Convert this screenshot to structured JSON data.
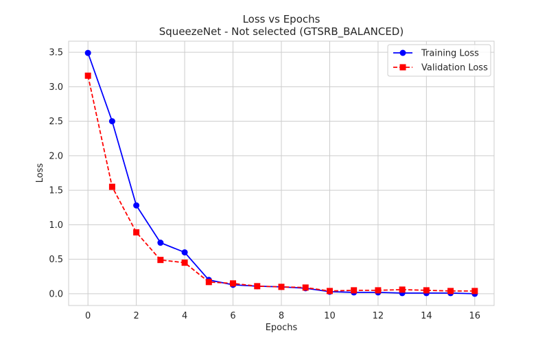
{
  "chart_data": {
    "type": "line",
    "title": "Loss vs Epochs",
    "subtitle": "SqueezeNet - Not selected (GTSRB_BALANCED)",
    "xlabel": "Epochs",
    "ylabel": "Loss",
    "xlim": [
      -0.8,
      16.8
    ],
    "ylim": [
      -0.17,
      3.66
    ],
    "xticks": [
      0,
      2,
      4,
      6,
      8,
      10,
      12,
      14,
      16
    ],
    "yticks": [
      0.0,
      0.5,
      1.0,
      1.5,
      2.0,
      2.5,
      3.0,
      3.5
    ],
    "grid": true,
    "legend_position": "top-right",
    "x": [
      0,
      1,
      2,
      3,
      4,
      5,
      6,
      7,
      8,
      9,
      10,
      11,
      12,
      13,
      14,
      15,
      16
    ],
    "series": [
      {
        "name": "Training Loss",
        "color": "#0000ff",
        "line_style": "solid",
        "marker": "circle",
        "values": [
          3.49,
          2.5,
          1.28,
          0.74,
          0.6,
          0.2,
          0.13,
          0.11,
          0.1,
          0.08,
          0.03,
          0.02,
          0.02,
          0.01,
          0.01,
          0.01,
          0.0
        ]
      },
      {
        "name": "Validation Loss",
        "color": "#ff0000",
        "line_style": "dashed",
        "marker": "square",
        "values": [
          3.16,
          1.55,
          0.89,
          0.49,
          0.45,
          0.17,
          0.15,
          0.11,
          0.1,
          0.09,
          0.04,
          0.05,
          0.05,
          0.06,
          0.05,
          0.04,
          0.04
        ]
      }
    ]
  }
}
